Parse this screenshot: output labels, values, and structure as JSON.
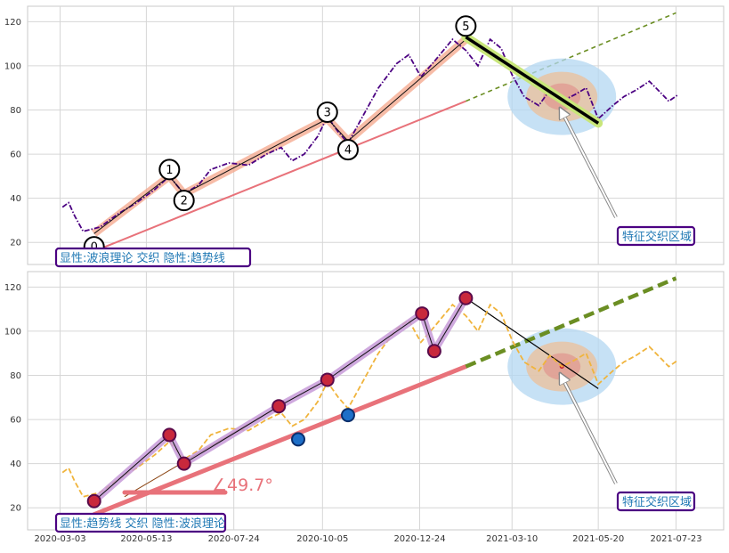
{
  "chart_data": [
    {
      "type": "line",
      "panel": "top",
      "xlim": [
        "2020-03-03",
        "2021-07-30"
      ],
      "ylim": [
        10,
        127
      ],
      "yticks": [
        20,
        40,
        60,
        80,
        100,
        120
      ],
      "grid": true,
      "annotation_text": "显性:波浪理论 交织 隐性:趋势线",
      "callout_text": "特征交织区域",
      "wave_labels": [
        "0",
        "1",
        "2",
        "3",
        "4",
        "5"
      ],
      "wave_points": [
        {
          "x": "2020-03-31",
          "y": 18
        },
        {
          "x": "2020-06-01",
          "y": 53
        },
        {
          "x": "2020-06-13",
          "y": 39
        },
        {
          "x": "2020-10-09",
          "y": 79
        },
        {
          "x": "2020-10-26",
          "y": 62
        },
        {
          "x": "2021-01-31",
          "y": 118
        }
      ],
      "price_series": [
        {
          "x": "2020-03-05",
          "y": 36
        },
        {
          "x": "2020-03-10",
          "y": 38
        },
        {
          "x": "2020-03-15",
          "y": 32
        },
        {
          "x": "2020-03-22",
          "y": 25
        },
        {
          "x": "2020-04-05",
          "y": 27
        },
        {
          "x": "2020-04-20",
          "y": 33
        },
        {
          "x": "2020-05-05",
          "y": 38
        },
        {
          "x": "2020-05-20",
          "y": 44
        },
        {
          "x": "2020-06-01",
          "y": 50
        },
        {
          "x": "2020-06-13",
          "y": 42
        },
        {
          "x": "2020-06-25",
          "y": 46
        },
        {
          "x": "2020-07-05",
          "y": 53
        },
        {
          "x": "2020-07-20",
          "y": 56
        },
        {
          "x": "2020-08-05",
          "y": 55
        },
        {
          "x": "2020-08-20",
          "y": 60
        },
        {
          "x": "2020-09-01",
          "y": 63
        },
        {
          "x": "2020-09-10",
          "y": 57
        },
        {
          "x": "2020-09-20",
          "y": 60
        },
        {
          "x": "2020-10-01",
          "y": 68
        },
        {
          "x": "2020-10-09",
          "y": 77
        },
        {
          "x": "2020-10-18",
          "y": 70
        },
        {
          "x": "2020-10-26",
          "y": 65
        },
        {
          "x": "2020-11-05",
          "y": 75
        },
        {
          "x": "2020-11-20",
          "y": 90
        },
        {
          "x": "2020-12-05",
          "y": 101
        },
        {
          "x": "2020-12-15",
          "y": 105
        },
        {
          "x": "2020-12-25",
          "y": 95
        },
        {
          "x": "2021-01-05",
          "y": 102
        },
        {
          "x": "2021-01-20",
          "y": 112
        },
        {
          "x": "2021-01-31",
          "y": 107
        },
        {
          "x": "2021-02-10",
          "y": 100
        },
        {
          "x": "2021-02-20",
          "y": 112
        },
        {
          "x": "2021-03-01",
          "y": 108
        },
        {
          "x": "2021-03-10",
          "y": 96
        },
        {
          "x": "2021-03-20",
          "y": 86
        },
        {
          "x": "2021-04-01",
          "y": 82
        },
        {
          "x": "2021-04-10",
          "y": 89
        },
        {
          "x": "2021-04-20",
          "y": 84
        },
        {
          "x": "2021-05-01",
          "y": 87
        },
        {
          "x": "2021-05-10",
          "y": 90
        },
        {
          "x": "2021-05-20",
          "y": 76
        },
        {
          "x": "2021-06-01",
          "y": 82
        },
        {
          "x": "2021-06-10",
          "y": 86
        },
        {
          "x": "2021-06-20",
          "y": 89
        },
        {
          "x": "2021-07-01",
          "y": 93
        },
        {
          "x": "2021-07-10",
          "y": 88
        },
        {
          "x": "2021-07-17",
          "y": 84
        },
        {
          "x": "2021-07-25",
          "y": 87
        }
      ]
    },
    {
      "type": "line",
      "panel": "bottom",
      "xlim": [
        "2020-03-03",
        "2021-07-30"
      ],
      "ylim": [
        10,
        127
      ],
      "yticks": [
        20,
        40,
        60,
        80,
        100,
        120
      ],
      "xticks": [
        "2020-03-03",
        "2020-05-13",
        "2020-07-24",
        "2020-10-05",
        "2020-12-24",
        "2021-03-10",
        "2021-05-20",
        "2021-07-23"
      ],
      "grid": true,
      "annotation_text": "显性:趋势线 交织 隐性:波浪理论",
      "callout_text": "特征交织区域",
      "angle_text": "∠49.7°",
      "price_series": [
        {
          "x": "2020-03-05",
          "y": 36
        },
        {
          "x": "2020-03-10",
          "y": 38
        },
        {
          "x": "2020-03-15",
          "y": 32
        },
        {
          "x": "2020-03-22",
          "y": 25
        },
        {
          "x": "2020-04-05",
          "y": 27
        },
        {
          "x": "2020-04-20",
          "y": 33
        },
        {
          "x": "2020-05-05",
          "y": 38
        },
        {
          "x": "2020-05-20",
          "y": 44
        },
        {
          "x": "2020-06-01",
          "y": 50
        },
        {
          "x": "2020-06-13",
          "y": 42
        },
        {
          "x": "2020-06-25",
          "y": 46
        },
        {
          "x": "2020-07-05",
          "y": 53
        },
        {
          "x": "2020-07-20",
          "y": 56
        },
        {
          "x": "2020-08-05",
          "y": 55
        },
        {
          "x": "2020-08-20",
          "y": 60
        },
        {
          "x": "2020-09-01",
          "y": 63
        },
        {
          "x": "2020-09-10",
          "y": 57
        },
        {
          "x": "2020-09-20",
          "y": 60
        },
        {
          "x": "2020-10-01",
          "y": 68
        },
        {
          "x": "2020-10-09",
          "y": 77
        },
        {
          "x": "2020-10-18",
          "y": 70
        },
        {
          "x": "2020-10-26",
          "y": 65
        },
        {
          "x": "2020-11-05",
          "y": 75
        },
        {
          "x": "2020-11-20",
          "y": 90
        },
        {
          "x": "2020-12-05",
          "y": 101
        },
        {
          "x": "2020-12-15",
          "y": 105
        },
        {
          "x": "2020-12-25",
          "y": 95
        },
        {
          "x": "2021-01-05",
          "y": 102
        },
        {
          "x": "2021-01-20",
          "y": 112
        },
        {
          "x": "2021-01-31",
          "y": 107
        },
        {
          "x": "2021-02-10",
          "y": 100
        },
        {
          "x": "2021-02-20",
          "y": 112
        },
        {
          "x": "2021-03-01",
          "y": 108
        },
        {
          "x": "2021-03-10",
          "y": 96
        },
        {
          "x": "2021-03-20",
          "y": 86
        },
        {
          "x": "2021-04-01",
          "y": 82
        },
        {
          "x": "2021-04-10",
          "y": 89
        },
        {
          "x": "2021-04-20",
          "y": 84
        },
        {
          "x": "2021-05-01",
          "y": 87
        },
        {
          "x": "2021-05-10",
          "y": 90
        },
        {
          "x": "2021-05-20",
          "y": 76
        },
        {
          "x": "2021-06-01",
          "y": 82
        },
        {
          "x": "2021-06-10",
          "y": 86
        },
        {
          "x": "2021-06-20",
          "y": 89
        },
        {
          "x": "2021-07-01",
          "y": 93
        },
        {
          "x": "2021-07-10",
          "y": 88
        },
        {
          "x": "2021-07-17",
          "y": 84
        },
        {
          "x": "2021-07-25",
          "y": 87
        }
      ],
      "pivot_points": [
        {
          "x": "2020-03-31",
          "y": 23,
          "kind": "low"
        },
        {
          "x": "2020-06-01",
          "y": 53,
          "kind": "high"
        },
        {
          "x": "2020-06-13",
          "y": 40,
          "kind": "low"
        },
        {
          "x": "2020-08-30",
          "y": 66,
          "kind": "high"
        },
        {
          "x": "2020-09-15",
          "y": 51,
          "kind": "blue"
        },
        {
          "x": "2020-10-09",
          "y": 78,
          "kind": "high"
        },
        {
          "x": "2020-10-26",
          "y": 62,
          "kind": "blue"
        },
        {
          "x": "2020-12-26",
          "y": 108,
          "kind": "high"
        },
        {
          "x": "2021-01-05",
          "y": 91,
          "kind": "low"
        },
        {
          "x": "2021-01-31",
          "y": 115,
          "kind": "high"
        }
      ]
    }
  ],
  "colors": {
    "price_top": "#4b0082",
    "price_bottom": "#f0b43c",
    "trend": "#e8727a",
    "trend_ext": "#6b8e23",
    "wave_band": "#f4a58a",
    "down_band": "#c8e67a",
    "ellipse_outer": "#b3d7f2",
    "ellipse_mid": "#e7c3a3",
    "ellipse_inner": "#e07f7f",
    "pivot_red": "#c8283c",
    "pivot_blue": "#1e6fc8",
    "box_border": "#4b0082",
    "note_text": "#1f78b4"
  }
}
